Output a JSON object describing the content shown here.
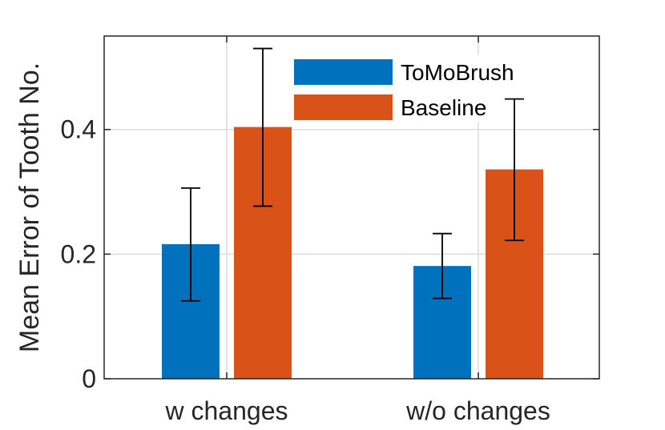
{
  "chart_data": {
    "type": "bar",
    "title": "",
    "xlabel": "",
    "ylabel": "Mean Error of Tooth No.",
    "categories": [
      "w changes",
      "w/o changes"
    ],
    "series": [
      {
        "name": "ToMoBrush",
        "color": "#0072BD",
        "values": [
          0.216,
          0.181
        ],
        "err_low": [
          0.125,
          0.129
        ],
        "err_high": [
          0.306,
          0.233
        ]
      },
      {
        "name": "Baseline",
        "color": "#D95319",
        "values": [
          0.404,
          0.336
        ],
        "err_low": [
          0.277,
          0.222
        ],
        "err_high": [
          0.53,
          0.449
        ]
      }
    ],
    "ylim": [
      0,
      0.55
    ],
    "yticks": [
      0,
      0.2,
      0.4
    ],
    "ytick_labels": [
      "0",
      "0.2",
      "0.4"
    ],
    "grid": true,
    "legend_position": "top-right"
  }
}
